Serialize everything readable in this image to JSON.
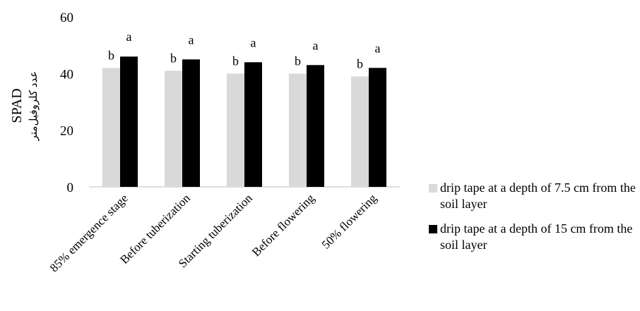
{
  "chart_data": {
    "type": "bar",
    "categories": [
      "85% emergence stage",
      "Before tuberization",
      "Starting tuberization",
      "Before flowering",
      "50% flowering"
    ],
    "series": [
      {
        "name": "drip tape at a depth of 7.5 cm from the soil layer",
        "values": [
          42,
          41,
          40,
          40,
          39
        ],
        "labels": [
          "b",
          "b",
          "b",
          "b",
          "b"
        ],
        "color": "#d9d9d9"
      },
      {
        "name": "drip tape at a depth of 15 cm from the soil layer",
        "values": [
          46,
          45,
          44,
          43,
          42
        ],
        "labels": [
          "a",
          "a",
          "a",
          "a",
          "a"
        ],
        "color": "#000000"
      }
    ],
    "ylabel": "SPAD",
    "ylabel_secondary": "عدد کلروفیل‌متر",
    "xlabel": "",
    "ylim": [
      0,
      60
    ],
    "yticks": [
      0,
      20,
      40,
      60
    ],
    "grid": false,
    "legend": "right"
  }
}
